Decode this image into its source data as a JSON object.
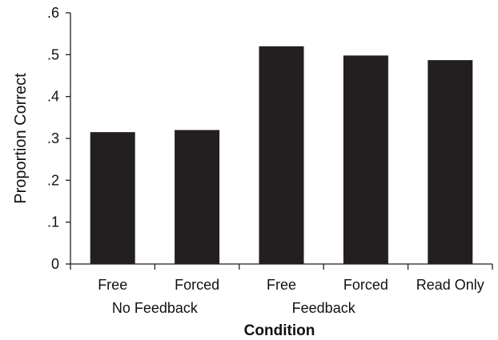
{
  "chart_data": {
    "type": "bar",
    "categories": [
      "Free",
      "Forced",
      "Free",
      "Forced",
      "Read Only"
    ],
    "groups": [
      {
        "label": "No Feedback",
        "start": 0,
        "end": 1
      },
      {
        "label": "Feedback",
        "start": 2,
        "end": 3
      }
    ],
    "values": [
      0.315,
      0.32,
      0.52,
      0.498,
      0.487
    ],
    "ylim": [
      0,
      0.6
    ],
    "yticks": [
      0,
      0.1,
      0.2,
      0.3,
      0.4,
      0.5,
      0.6
    ],
    "ytick_labels": [
      "0",
      ".1",
      ".2",
      ".3",
      ".4",
      ".5",
      ".6"
    ],
    "xlabel": "Condition",
    "ylabel": "Proportion Correct",
    "grid": false,
    "colors": {
      "bar": "#231f20",
      "axis": "#231f20"
    }
  }
}
